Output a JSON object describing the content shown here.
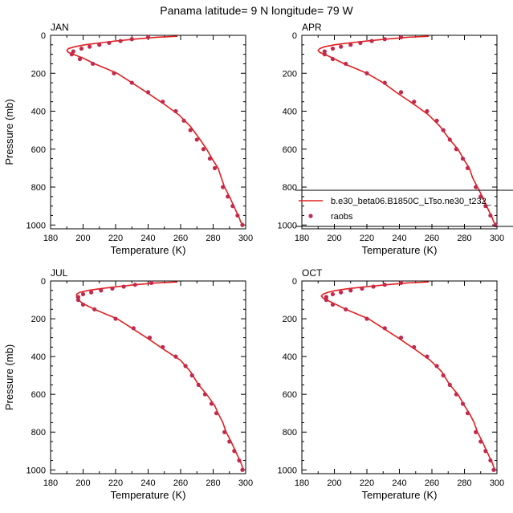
{
  "title": "Panama  latitude= 9 N longitude= 79 W",
  "colors": {
    "model": "#e0201e",
    "obs": "#c2294d",
    "axis": "#000000"
  },
  "legend": {
    "model_label": "b.e30_beta06.B1850C_LTso.ne30_t232_",
    "obs_label": "raobs",
    "panel": "APR",
    "placement": "bottom-right"
  },
  "chart_data": [
    {
      "type": "line",
      "panel": "JAN",
      "xlabel": "Temperature (K)",
      "ylabel": "Pressure (mb)",
      "xlim": [
        180,
        300
      ],
      "ylim": [
        1020,
        0
      ],
      "xticks": [
        180,
        200,
        220,
        240,
        260,
        280,
        300
      ],
      "yticks": [
        0,
        200,
        400,
        600,
        800,
        1000
      ],
      "series": [
        {
          "name": "b.e30_beta06.B1850C_LTso.ne30_t232_",
          "style": "line",
          "points": [
            [
              258,
              5
            ],
            [
              245,
              10
            ],
            [
              232,
              20
            ],
            [
              220,
              30
            ],
            [
              210,
              40
            ],
            [
              201,
              50
            ],
            [
              195,
              60
            ],
            [
              191,
              70
            ],
            [
              190,
              80
            ],
            [
              191,
              90
            ],
            [
              194,
              100
            ],
            [
              200,
              120
            ],
            [
              207,
              150
            ],
            [
              214,
              175
            ],
            [
              221,
              200
            ],
            [
              230,
              250
            ],
            [
              239,
              300
            ],
            [
              251,
              370
            ],
            [
              259,
              420
            ],
            [
              266,
              480
            ],
            [
              272,
              550
            ],
            [
              276,
              600
            ],
            [
              280,
              660
            ],
            [
              283,
              700
            ],
            [
              285,
              750
            ],
            [
              287,
              800
            ],
            [
              290,
              850
            ],
            [
              294,
              925
            ],
            [
              296,
              960
            ],
            [
              297,
              985
            ],
            [
              299,
              1000
            ]
          ]
        },
        {
          "name": "raobs",
          "style": "markers",
          "points": [
            [
              240,
              10
            ],
            [
              230,
              20
            ],
            [
              223,
              30
            ],
            [
              216,
              40
            ],
            [
              210,
              50
            ],
            [
              204,
              60
            ],
            [
              199,
              70
            ],
            [
              194,
              85
            ],
            [
              193,
              100
            ],
            [
              198,
              125
            ],
            [
              206,
              150
            ],
            [
              219,
              200
            ],
            [
              230,
              250
            ],
            [
              240,
              300
            ],
            [
              249,
              350
            ],
            [
              257,
              400
            ],
            [
              262,
              450
            ],
            [
              266,
              500
            ],
            [
              270,
              550
            ],
            [
              274,
              600
            ],
            [
              278,
              650
            ],
            [
              281,
              700
            ],
            [
              286,
              800
            ],
            [
              289,
              850
            ],
            [
              292,
              900
            ],
            [
              295,
              950
            ],
            [
              298,
              1000
            ]
          ]
        }
      ]
    },
    {
      "type": "line",
      "panel": "APR",
      "xlabel": "Temperature (K)",
      "ylabel": "",
      "xlim": [
        180,
        300
      ],
      "ylim": [
        1020,
        0
      ],
      "xticks": [
        180,
        200,
        220,
        240,
        260,
        280,
        300
      ],
      "yticks": [
        0,
        200,
        400,
        600,
        800,
        1000
      ],
      "series": [
        {
          "name": "b.e30_beta06.B1850C_LTso.ne30_t232_",
          "style": "line",
          "points": [
            [
              258,
              5
            ],
            [
              245,
              10
            ],
            [
              232,
              20
            ],
            [
              220,
              30
            ],
            [
              209,
              40
            ],
            [
              200,
              50
            ],
            [
              194,
              60
            ],
            [
              191,
              70
            ],
            [
              190,
              80
            ],
            [
              191,
              90
            ],
            [
              194,
              100
            ],
            [
              199,
              120
            ],
            [
              206,
              150
            ],
            [
              213,
              175
            ],
            [
              220,
              200
            ],
            [
              230,
              250
            ],
            [
              238,
              300
            ],
            [
              250,
              370
            ],
            [
              258,
              420
            ],
            [
              265,
              480
            ],
            [
              271,
              550
            ],
            [
              276,
              600
            ],
            [
              280,
              660
            ],
            [
              283,
              700
            ],
            [
              285,
              750
            ],
            [
              288,
              800
            ],
            [
              291,
              850
            ],
            [
              295,
              925
            ],
            [
              297,
              960
            ],
            [
              298,
              985
            ],
            [
              300,
              1000
            ]
          ]
        },
        {
          "name": "raobs",
          "style": "markers",
          "points": [
            [
              241,
              10
            ],
            [
              231,
              20
            ],
            [
              223,
              30
            ],
            [
              216,
              40
            ],
            [
              210,
              50
            ],
            [
              204,
              60
            ],
            [
              199,
              70
            ],
            [
              194,
              85
            ],
            [
              194,
              100
            ],
            [
              199,
              125
            ],
            [
              207,
              150
            ],
            [
              220,
              200
            ],
            [
              231,
              250
            ],
            [
              241,
              300
            ],
            [
              249,
              350
            ],
            [
              257,
              400
            ],
            [
              263,
              450
            ],
            [
              267,
              500
            ],
            [
              271,
              550
            ],
            [
              275,
              600
            ],
            [
              279,
              650
            ],
            [
              282,
              700
            ],
            [
              287,
              800
            ],
            [
              290,
              850
            ],
            [
              293,
              900
            ],
            [
              296,
              950
            ],
            [
              299,
              1000
            ]
          ]
        }
      ]
    },
    {
      "type": "line",
      "panel": "JUL",
      "xlabel": "Temperature (K)",
      "ylabel": "Pressure (mb)",
      "xlim": [
        180,
        300
      ],
      "ylim": [
        1020,
        0
      ],
      "xticks": [
        180,
        200,
        220,
        240,
        260,
        280,
        300
      ],
      "yticks": [
        0,
        200,
        400,
        600,
        800,
        1000
      ],
      "series": [
        {
          "name": "b.e30_beta06.B1850C_LTso.ne30_t232_",
          "style": "line",
          "points": [
            [
              258,
              5
            ],
            [
              245,
              10
            ],
            [
              232,
              20
            ],
            [
              221,
              30
            ],
            [
              211,
              40
            ],
            [
              203,
              50
            ],
            [
              198,
              60
            ],
            [
              196,
              70
            ],
            [
              196,
              85
            ],
            [
              197,
              100
            ],
            [
              200,
              120
            ],
            [
              207,
              150
            ],
            [
              214,
              175
            ],
            [
              221,
              200
            ],
            [
              230,
              250
            ],
            [
              239,
              300
            ],
            [
              251,
              370
            ],
            [
              260,
              420
            ],
            [
              266,
              480
            ],
            [
              271,
              550
            ],
            [
              276,
              600
            ],
            [
              281,
              660
            ],
            [
              283,
              700
            ],
            [
              286,
              750
            ],
            [
              288,
              800
            ],
            [
              291,
              850
            ],
            [
              295,
              925
            ],
            [
              297,
              960
            ],
            [
              298,
              985
            ],
            [
              299,
              1000
            ]
          ]
        },
        {
          "name": "raobs",
          "style": "markers",
          "points": [
            [
              242,
              10
            ],
            [
              232,
              20
            ],
            [
              225,
              30
            ],
            [
              218,
              40
            ],
            [
              211,
              50
            ],
            [
              205,
              60
            ],
            [
              200,
              70
            ],
            [
              197,
              85
            ],
            [
              197,
              100
            ],
            [
              200,
              125
            ],
            [
              207,
              150
            ],
            [
              220,
              200
            ],
            [
              231,
              250
            ],
            [
              241,
              300
            ],
            [
              249,
              350
            ],
            [
              257,
              400
            ],
            [
              263,
              450
            ],
            [
              267,
              500
            ],
            [
              271,
              550
            ],
            [
              275,
              600
            ],
            [
              279,
              650
            ],
            [
              282,
              700
            ],
            [
              287,
              800
            ],
            [
              290,
              850
            ],
            [
              293,
              900
            ],
            [
              296,
              950
            ],
            [
              298,
              1000
            ]
          ]
        }
      ]
    },
    {
      "type": "line",
      "panel": "OCT",
      "xlabel": "Temperature (K)",
      "ylabel": "",
      "xlim": [
        180,
        300
      ],
      "ylim": [
        1020,
        0
      ],
      "xticks": [
        180,
        200,
        220,
        240,
        260,
        280,
        300
      ],
      "yticks": [
        0,
        200,
        400,
        600,
        800,
        1000
      ],
      "series": [
        {
          "name": "b.e30_beta06.B1850C_LTso.ne30_t232_",
          "style": "line",
          "points": [
            [
              258,
              5
            ],
            [
              245,
              10
            ],
            [
              232,
              20
            ],
            [
              220,
              30
            ],
            [
              209,
              40
            ],
            [
              201,
              50
            ],
            [
              196,
              60
            ],
            [
              193,
              70
            ],
            [
              192,
              80
            ],
            [
              193,
              90
            ],
            [
              195,
              100
            ],
            [
              200,
              120
            ],
            [
              207,
              150
            ],
            [
              214,
              175
            ],
            [
              221,
              200
            ],
            [
              230,
              250
            ],
            [
              239,
              300
            ],
            [
              251,
              370
            ],
            [
              259,
              420
            ],
            [
              266,
              480
            ],
            [
              271,
              550
            ],
            [
              276,
              600
            ],
            [
              280,
              660
            ],
            [
              283,
              700
            ],
            [
              286,
              750
            ],
            [
              288,
              800
            ],
            [
              291,
              850
            ],
            [
              295,
              925
            ],
            [
              297,
              960
            ],
            [
              298,
              985
            ],
            [
              299,
              1000
            ]
          ]
        },
        {
          "name": "raobs",
          "style": "markers",
          "points": [
            [
              241,
              10
            ],
            [
              231,
              20
            ],
            [
              224,
              30
            ],
            [
              217,
              40
            ],
            [
              210,
              50
            ],
            [
              204,
              60
            ],
            [
              199,
              70
            ],
            [
              195,
              85
            ],
            [
              195,
              100
            ],
            [
              199,
              125
            ],
            [
              207,
              150
            ],
            [
              220,
              200
            ],
            [
              231,
              250
            ],
            [
              241,
              300
            ],
            [
              249,
              350
            ],
            [
              257,
              400
            ],
            [
              263,
              450
            ],
            [
              267,
              500
            ],
            [
              271,
              550
            ],
            [
              275,
              600
            ],
            [
              279,
              650
            ],
            [
              282,
              700
            ],
            [
              287,
              800
            ],
            [
              290,
              850
            ],
            [
              293,
              900
            ],
            [
              296,
              950
            ],
            [
              298,
              1000
            ]
          ]
        }
      ]
    }
  ]
}
